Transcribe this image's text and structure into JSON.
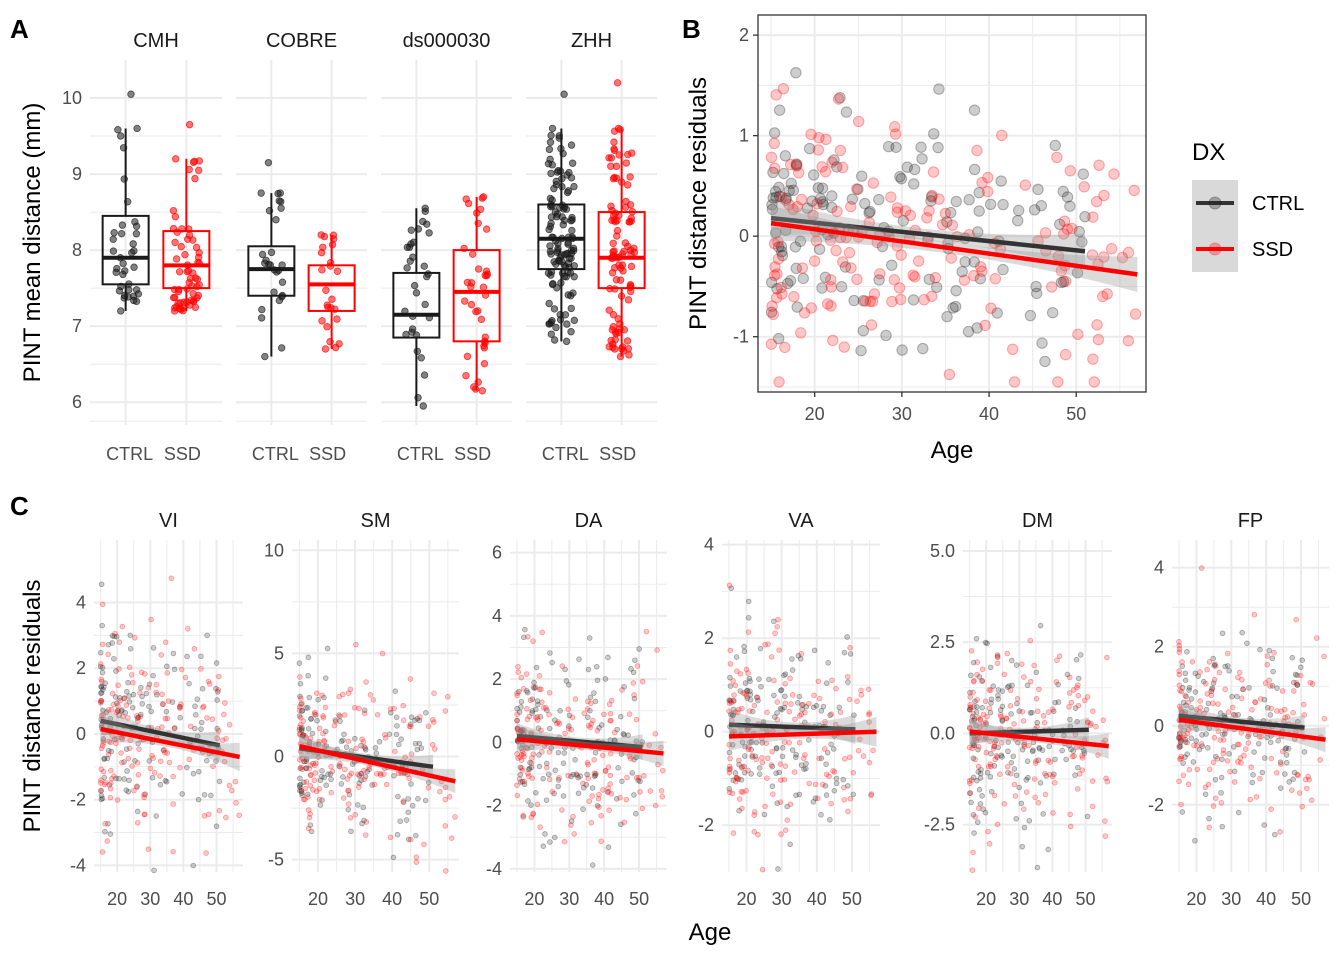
{
  "colors": {
    "ctrl": "#1a1a1a",
    "ssd": "#ff0000",
    "grid": "#ebebeb",
    "ci": "#999999"
  },
  "panel_labels": [
    "A",
    "B",
    "C"
  ],
  "legend": {
    "title": "DX",
    "items": [
      {
        "label": "CTRL",
        "color": "#1a1a1a"
      },
      {
        "label": "SSD",
        "color": "#ff0000"
      }
    ]
  },
  "chart_data": [
    {
      "id": "A",
      "type": "box",
      "ylabel": "PINT mean distance (mm)",
      "ylim": [
        5.7,
        10.5
      ],
      "yticks": [
        6,
        7,
        8,
        9,
        10
      ],
      "facets": [
        {
          "name": "CMH",
          "groups": [
            {
              "label": "CTRL",
              "min": 7.2,
              "q1": 7.55,
              "median": 7.9,
              "q3": 8.45,
              "max": 9.6,
              "outliers": [
                10.05
              ],
              "n": 35
            },
            {
              "label": "SSD",
              "min": 7.2,
              "q1": 7.5,
              "median": 7.8,
              "q3": 8.25,
              "max": 9.2,
              "outliers": [
                9.65
              ],
              "n": 60
            }
          ]
        },
        {
          "name": "COBRE",
          "groups": [
            {
              "label": "CTRL",
              "min": 6.6,
              "q1": 7.4,
              "median": 7.75,
              "q3": 8.05,
              "max": 8.75,
              "outliers": [
                9.15
              ],
              "n": 25
            },
            {
              "label": "SSD",
              "min": 6.7,
              "q1": 7.2,
              "median": 7.55,
              "q3": 7.8,
              "max": 8.2,
              "outliers": [],
              "n": 22
            }
          ]
        },
        {
          "name": "ds000030",
          "groups": [
            {
              "label": "CTRL",
              "min": 5.95,
              "q1": 6.85,
              "median": 7.15,
              "q3": 7.7,
              "max": 8.55,
              "outliers": [],
              "n": 30
            },
            {
              "label": "SSD",
              "min": 6.15,
              "q1": 6.8,
              "median": 7.45,
              "q3": 8.0,
              "max": 8.7,
              "outliers": [],
              "n": 35
            }
          ]
        },
        {
          "name": "ZHH",
          "groups": [
            {
              "label": "CTRL",
              "min": 6.8,
              "q1": 7.75,
              "median": 8.15,
              "q3": 8.6,
              "max": 9.6,
              "outliers": [
                10.05
              ],
              "n": 120
            },
            {
              "label": "SSD",
              "min": 6.6,
              "q1": 7.5,
              "median": 7.9,
              "q3": 8.5,
              "max": 9.6,
              "outliers": [
                10.2
              ],
              "n": 95
            }
          ]
        }
      ]
    },
    {
      "id": "B",
      "type": "scatter",
      "xlabel": "Age",
      "ylabel": "PINT distance residuals",
      "xlim": [
        13.5,
        58
      ],
      "ylim": [
        -1.55,
        2.2
      ],
      "xticks": [
        20,
        30,
        40,
        50
      ],
      "yticks": [
        -1,
        0,
        1,
        2
      ],
      "series": [
        {
          "name": "CTRL",
          "line": [
            [
              15,
              0.18
            ],
            [
              51,
              -0.15
            ]
          ],
          "x_range": [
            15,
            51
          ],
          "n": 150
        },
        {
          "name": "SSD",
          "line": [
            [
              15,
              0.13
            ],
            [
              57,
              -0.38
            ]
          ],
          "x_range": [
            15,
            57
          ],
          "n": 170
        }
      ]
    },
    {
      "id": "C",
      "type": "scatter",
      "xlabel": "Age",
      "ylabel": "PINT distance residuals",
      "xticks": [
        20,
        30,
        40,
        50
      ],
      "xlim": [
        13,
        58
      ],
      "facets": [
        {
          "name": "VI",
          "ylim": [
            -4.2,
            5.9
          ],
          "yticks": [
            -4,
            -2,
            0,
            2,
            4
          ],
          "sd": 1.5,
          "lines": {
            "CTRL": [
              [
                15,
                0.4
              ],
              [
                51,
                -0.35
              ]
            ],
            "SSD": [
              [
                15,
                0.15
              ],
              [
                57,
                -0.7
              ]
            ]
          }
        },
        {
          "name": "SM",
          "ylim": [
            -5.6,
            10.5
          ],
          "yticks": [
            -5,
            0,
            5,
            10
          ],
          "sd": 2.0,
          "lines": {
            "CTRL": [
              [
                15,
                0.4
              ],
              [
                51,
                -0.5
              ]
            ],
            "SSD": [
              [
                15,
                0.5
              ],
              [
                57,
                -1.2
              ]
            ]
          }
        },
        {
          "name": "DA",
          "ylim": [
            -4.1,
            6.4
          ],
          "yticks": [
            -4,
            -2,
            0,
            2,
            4,
            6
          ],
          "sd": 1.4,
          "lines": {
            "CTRL": [
              [
                15,
                0.2
              ],
              [
                51,
                -0.15
              ]
            ],
            "SSD": [
              [
                15,
                0.1
              ],
              [
                57,
                -0.35
              ]
            ]
          }
        },
        {
          "name": "VA",
          "ylim": [
            -3,
            4.1
          ],
          "yticks": [
            -2,
            0,
            2,
            4
          ],
          "sd": 1.1,
          "lines": {
            "CTRL": [
              [
                15,
                0.15
              ],
              [
                51,
                0.05
              ]
            ],
            "SSD": [
              [
                15,
                -0.1
              ],
              [
                57,
                0.0
              ]
            ]
          }
        },
        {
          "name": "DM",
          "ylim": [
            -3.8,
            5.3
          ],
          "yticks": [
            -2.5,
            0.0,
            2.5,
            5.0
          ],
          "ytick_format": 1,
          "sd": 1.2,
          "lines": {
            "CTRL": [
              [
                15,
                0.0
              ],
              [
                51,
                0.1
              ]
            ],
            "SSD": [
              [
                15,
                0.05
              ],
              [
                57,
                -0.35
              ]
            ]
          }
        },
        {
          "name": "FP",
          "ylim": [
            -3.7,
            4.7
          ],
          "yticks": [
            -2,
            0,
            2,
            4
          ],
          "sd": 1.1,
          "lines": {
            "CTRL": [
              [
                15,
                0.25
              ],
              [
                51,
                -0.05
              ]
            ],
            "SSD": [
              [
                15,
                0.15
              ],
              [
                57,
                -0.35
              ]
            ]
          }
        }
      ]
    }
  ]
}
